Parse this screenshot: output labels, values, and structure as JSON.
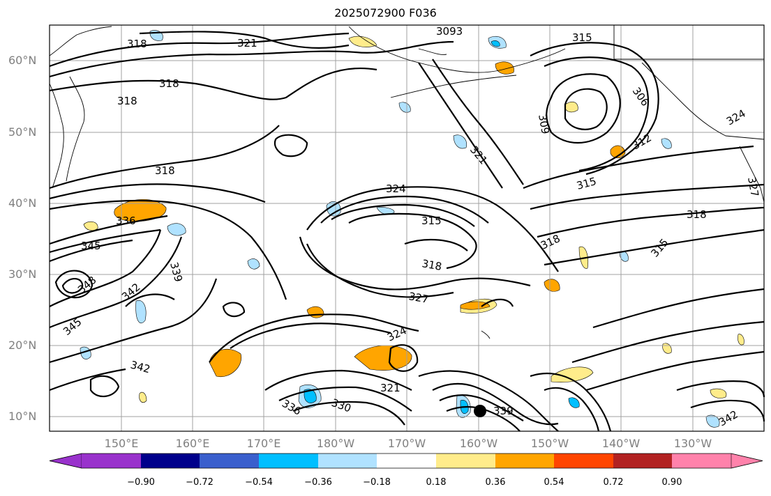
{
  "title": "2025072900 F036",
  "lat_labels": [
    "60°N",
    "50°N",
    "40°N",
    "30°N",
    "20°N",
    "10°N"
  ],
  "lon_labels": [
    "150°E",
    "160°E",
    "170°E",
    "180°W",
    "170°W",
    "160°W",
    "150°W",
    "140°W",
    "130°W"
  ],
  "colorbar": {
    "tick_labels": [
      "−0.90",
      "−0.72",
      "−0.54",
      "−0.36",
      "−0.18",
      "0.18",
      "0.36",
      "0.54",
      "0.72",
      "0.90"
    ],
    "colors": [
      "#9932cc",
      "#00008b",
      "#3a5fcd",
      "#00bfff",
      "#b0e2ff",
      "#ffffff",
      "#ffec8b",
      "#ffa500",
      "#ff4500",
      "#b22222",
      "#ff82ab"
    ]
  },
  "contour_labels": [
    "318",
    "321",
    "3093",
    "315",
    "318",
    "318",
    "306",
    "309",
    "324",
    "318",
    "321",
    "312",
    "315",
    "324",
    "327",
    "315",
    "318",
    "318",
    "318",
    "336",
    "345",
    "339",
    "315",
    "342",
    "348",
    "327",
    "345",
    "324",
    "342",
    "321",
    "330",
    "339",
    "342",
    "336"
  ]
}
